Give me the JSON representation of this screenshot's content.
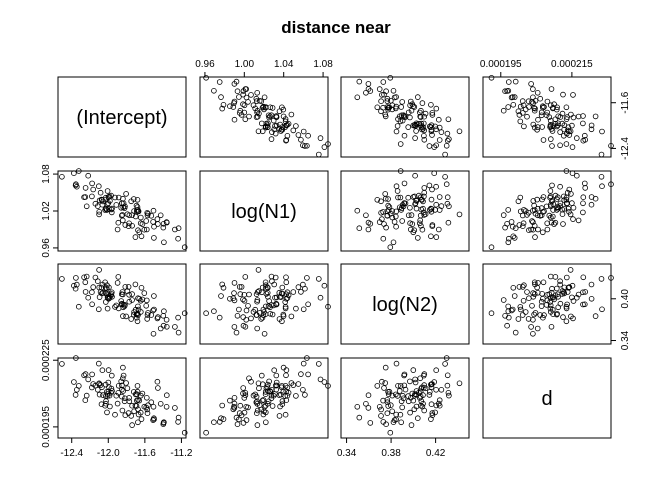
{
  "chart_data": {
    "type": "scatter",
    "title": "distance near",
    "variables": [
      "(Intercept)",
      "log(N1)",
      "log(N2)",
      "d"
    ],
    "ranges": {
      "(Intercept)": [
        -12.55,
        -11.15
      ],
      "log(N1)": [
        0.955,
        1.085
      ],
      "log(N2)": [
        0.335,
        0.45
      ],
      "d": [
        0.00019,
        0.000226
      ]
    },
    "ticks": {
      "(Intercept)": [
        "-12.4",
        "-12.0",
        "-11.6",
        "-11.2"
      ],
      "log(N1)": [
        "0.96",
        "1.00",
        "1.04",
        "1.08"
      ],
      "log(N2)": [
        "0.34",
        "0.38",
        "0.42"
      ],
      "d": [
        "0.000195",
        "0.000215"
      ]
    },
    "axis_ticks": {
      "top": {
        "log(N1)": [
          "0.96",
          "1.00",
          "1.04",
          "1.08"
        ],
        "d": [
          "0.000195",
          "0.000215"
        ]
      },
      "left": {
        "log(N1)": [
          "0.96",
          "1.02",
          "1.08"
        ],
        "d": [
          "0.000195",
          "0.000225"
        ]
      },
      "right": {
        "(Intercept)": [
          "-12.4",
          "-11.6"
        ],
        "log(N2)": [
          "0.34",
          "0.40"
        ]
      },
      "bottom": {
        "(Intercept)": [
          "-12.4",
          "-12.0",
          "-11.6",
          "-11.2"
        ],
        "log(N2)": [
          "0.34",
          "0.38",
          "0.42"
        ]
      }
    },
    "n_points": 110,
    "correlations": {
      "(Intercept)|log(N1)": -0.72,
      "(Intercept)|log(N2)": -0.75,
      "(Intercept)|d": -0.58,
      "log(N1)|log(N2)": 0.1,
      "log(N1)|d": 0.55,
      "log(N2)|d": 0.1
    },
    "marker": "open-circle",
    "grid": false
  }
}
